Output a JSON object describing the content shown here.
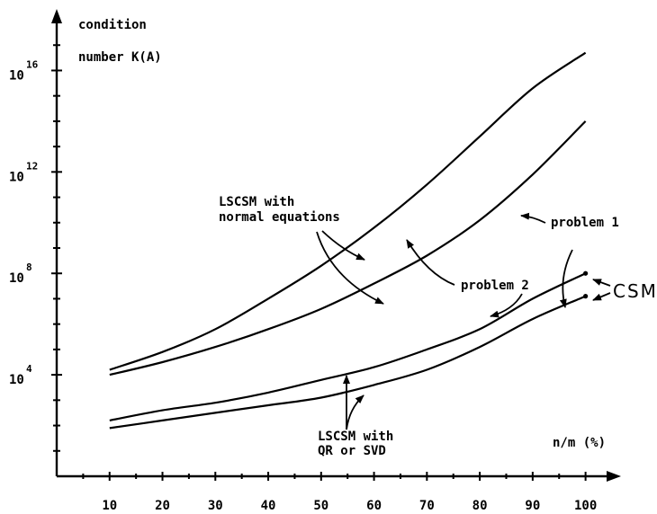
{
  "chart_data": {
    "type": "line",
    "ylabel_line1": "condition",
    "ylabel_line2": "number K(A)",
    "xlabel": "n/m (%)",
    "x_ticks": [
      "10",
      "20",
      "30",
      "40",
      "50",
      "60",
      "70",
      "80",
      "90",
      "100"
    ],
    "y_ticks": [
      {
        "base": "10",
        "exp": "4",
        "value": 4
      },
      {
        "base": "10",
        "exp": "8",
        "value": 8
      },
      {
        "base": "10",
        "exp": "12",
        "value": 12
      },
      {
        "base": "10",
        "exp": "16",
        "value": 16
      }
    ],
    "y_scale": "log10",
    "xlim": [
      0,
      105
    ],
    "ylim_log10": [
      0,
      18
    ],
    "series": [
      {
        "x": [
          10,
          20,
          30,
          40,
          50,
          60,
          70,
          80,
          90,
          100
        ],
        "log10_y": [
          4.2,
          4.9,
          5.8,
          7.0,
          8.3,
          9.8,
          11.5,
          13.4,
          15.3,
          16.7
        ]
      },
      {
        "x": [
          10,
          20,
          30,
          40,
          50,
          60,
          70,
          80,
          90,
          100
        ],
        "log10_y": [
          4.0,
          4.5,
          5.1,
          5.8,
          6.6,
          7.6,
          8.7,
          10.1,
          11.9,
          14.0
        ]
      },
      {
        "x": [
          10,
          20,
          30,
          40,
          50,
          60,
          70,
          80,
          90,
          100
        ],
        "log10_y": [
          2.2,
          2.6,
          2.9,
          3.3,
          3.8,
          4.3,
          5.0,
          5.8,
          7.0,
          8.0
        ]
      },
      {
        "x": [
          10,
          20,
          30,
          40,
          50,
          60,
          70,
          80,
          90,
          100
        ],
        "log10_y": [
          1.9,
          2.2,
          2.5,
          2.8,
          3.1,
          3.6,
          4.2,
          5.1,
          6.2,
          7.1
        ]
      }
    ],
    "annotations": {
      "lscsm_normal_line1": "LSCSM with",
      "lscsm_normal_line2": "normal equations",
      "problem1": "problem 1",
      "problem2": "problem 2",
      "csm": "CSM",
      "lscsm_qr_line1": "LSCSM with",
      "lscsm_qr_line2": "QR or SVD"
    }
  }
}
